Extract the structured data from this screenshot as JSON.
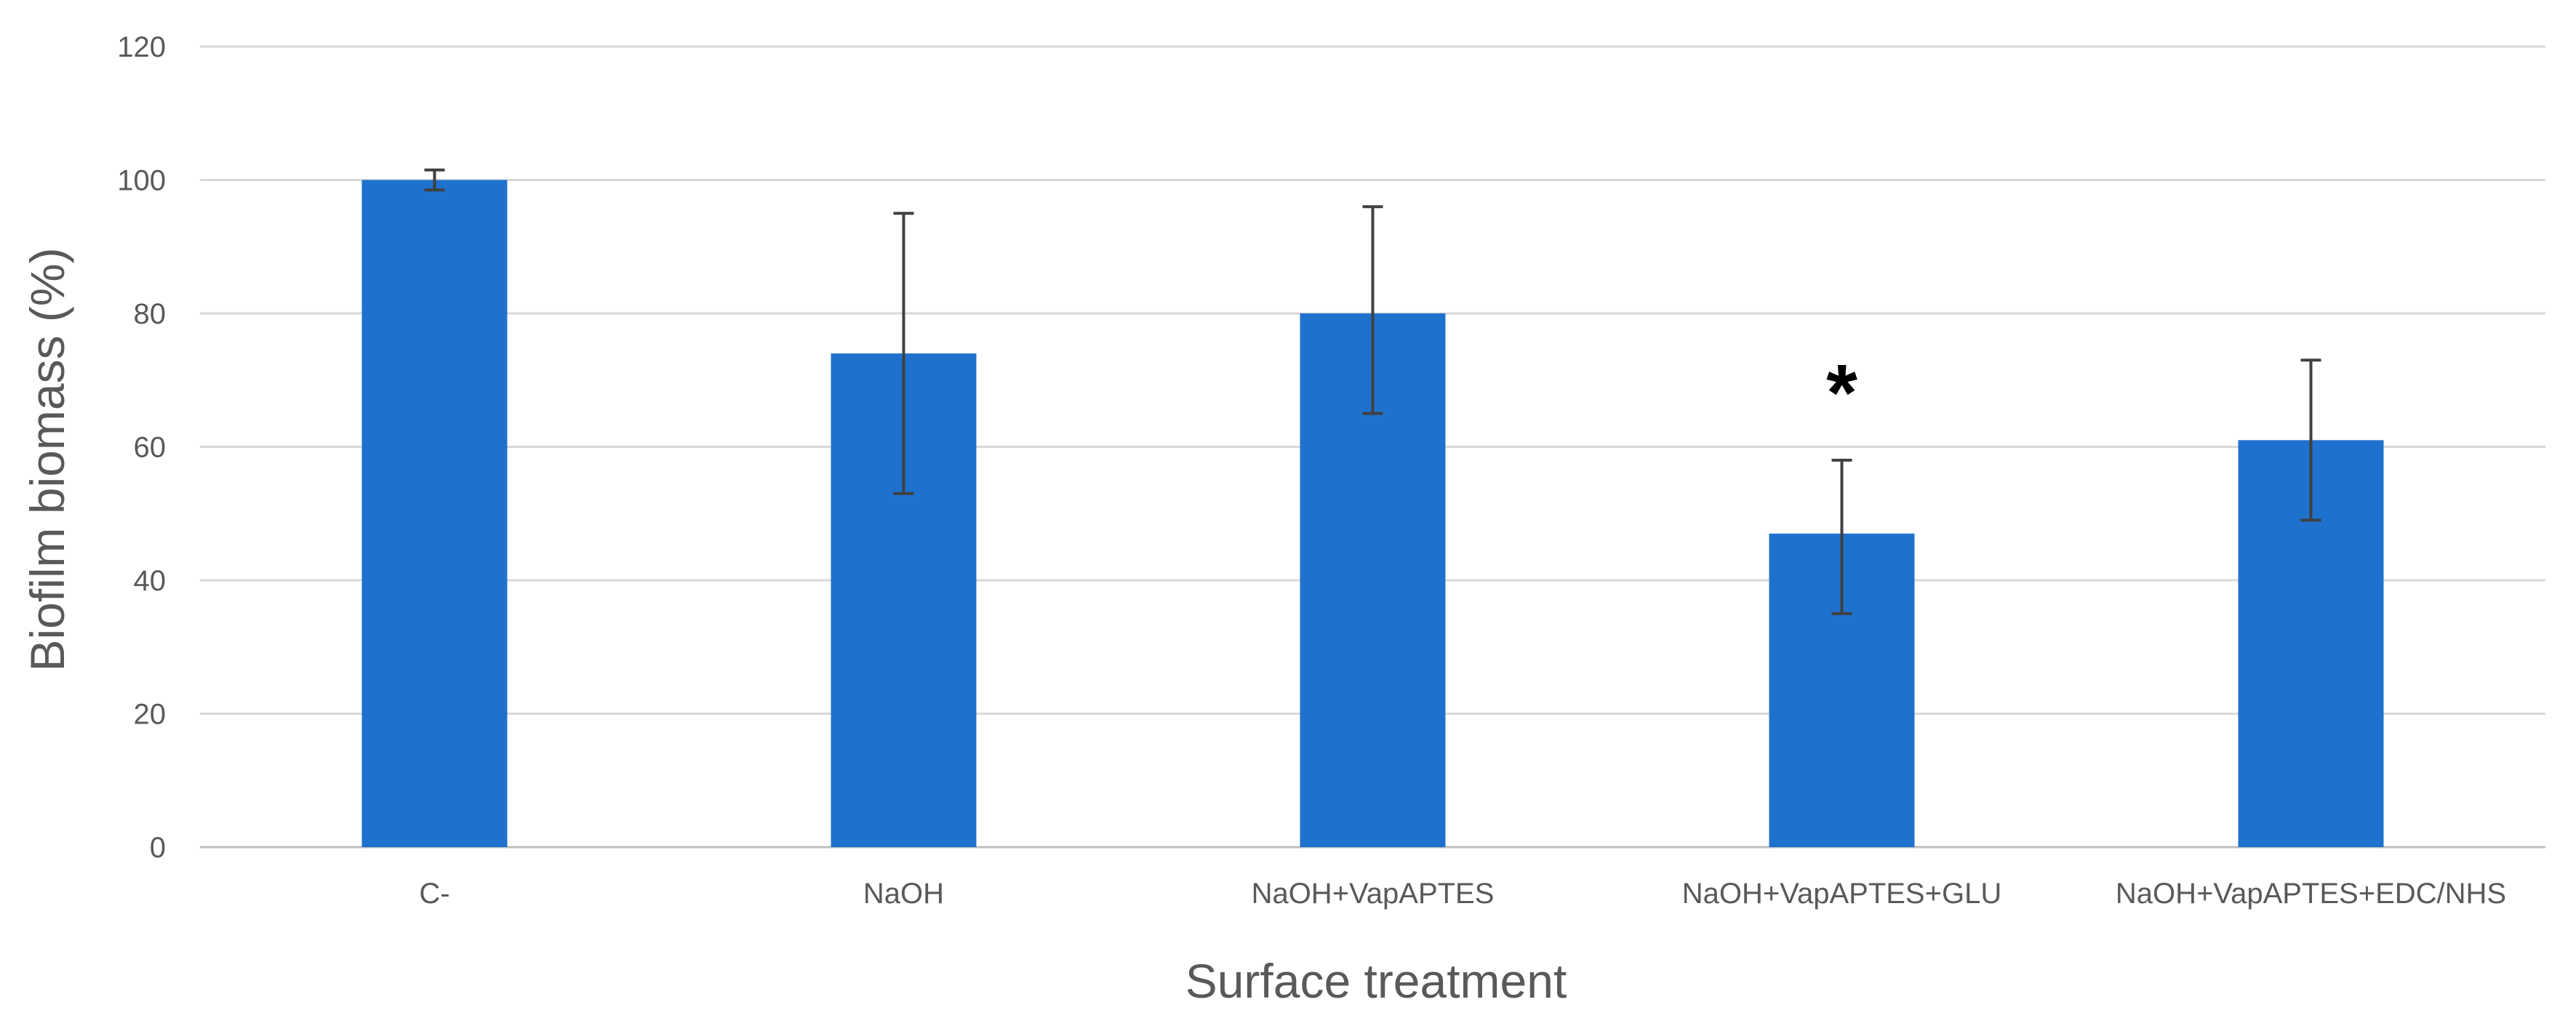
{
  "chart_data": {
    "type": "bar",
    "title": "",
    "xlabel": "Surface treatment",
    "ylabel": "Biofilm biomass (%)",
    "categories": [
      "C-",
      "NaOH",
      "NaOH+VapAPTES",
      "NaOH+VapAPTES+GLU",
      "NaOH+VapAPTES+EDC/NHS"
    ],
    "values": [
      100,
      74,
      80,
      47,
      61
    ],
    "error_upper": [
      101.5,
      95,
      96,
      58,
      73
    ],
    "error_lower": [
      98.5,
      53,
      65,
      35,
      49
    ],
    "ylim": [
      0,
      120
    ],
    "yticks": [
      0,
      20,
      40,
      60,
      80,
      100,
      120
    ],
    "grid": true,
    "legend": "none",
    "annotations": [
      {
        "text": "*",
        "category": "NaOH+VapAPTES+GLU"
      }
    ],
    "colors": {
      "bar": "#1f71ce",
      "grid": "#d9d9d9",
      "error_bar": "#404040",
      "text": "#595959"
    }
  }
}
